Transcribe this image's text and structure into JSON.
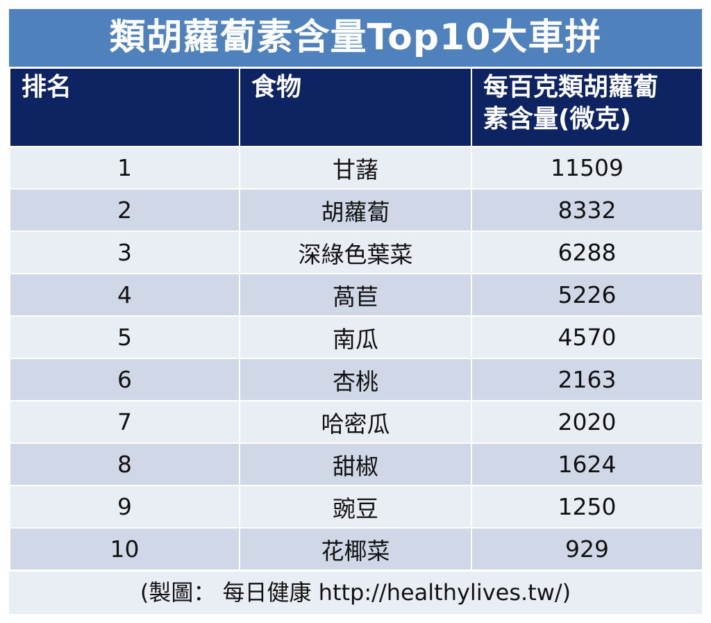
{
  "title": "類胡蘿蔔素含量Top10大車拼",
  "colors": {
    "title_bg": "#4f81bd",
    "header_bg": "#0e2362",
    "row_light": "#e9edf4",
    "row_dark": "#d0d8e8"
  },
  "table": {
    "headers": {
      "rank": "排名",
      "food": "食物",
      "amount_line1": "每百克類胡蘿蔔",
      "amount_line2": "素含量(微克)"
    },
    "rows": [
      {
        "rank": "1",
        "food": "甘藷",
        "amount": "11509"
      },
      {
        "rank": "2",
        "food": "胡蘿蔔",
        "amount": "8332"
      },
      {
        "rank": "3",
        "food": "深綠色葉菜",
        "amount": "6288"
      },
      {
        "rank": "4",
        "food": "萵苣",
        "amount": "5226"
      },
      {
        "rank": "5",
        "food": "南瓜",
        "amount": "4570"
      },
      {
        "rank": "6",
        "food": "杏桃",
        "amount": "2163"
      },
      {
        "rank": "7",
        "food": "哈密瓜",
        "amount": "2020"
      },
      {
        "rank": "8",
        "food": "甜椒",
        "amount": "1624"
      },
      {
        "rank": "9",
        "food": "豌豆",
        "amount": "1250"
      },
      {
        "rank": "10",
        "food": "花椰菜",
        "amount": "929"
      }
    ]
  },
  "footer": "(製圖： 每日健康  http://healthylives.tw/)"
}
